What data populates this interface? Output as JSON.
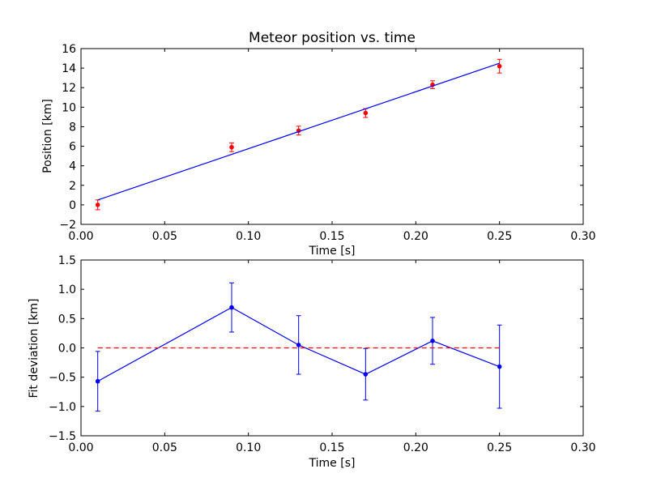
{
  "chart_data": [
    {
      "type": "scatter",
      "title": "Meteor position vs. time",
      "xlabel": "Time [s]",
      "ylabel": "Position [km]",
      "xlim": [
        0.0,
        0.3
      ],
      "ylim": [
        -2,
        16
      ],
      "x_ticks": [
        "0.00",
        "0.05",
        "0.10",
        "0.15",
        "0.20",
        "0.25",
        "0.30"
      ],
      "y_ticks": [
        "−2",
        "0",
        "2",
        "4",
        "6",
        "8",
        "10",
        "12",
        "14",
        "16"
      ],
      "grid": false,
      "series": [
        {
          "type": "errorbar",
          "color": "#ff0000",
          "x": [
            0.01,
            0.09,
            0.13,
            0.17,
            0.21,
            0.25
          ],
          "y": [
            0.0,
            5.9,
            7.6,
            9.4,
            12.3,
            14.2
          ],
          "yerr": [
            0.5,
            0.45,
            0.45,
            0.45,
            0.4,
            0.7
          ]
        },
        {
          "type": "line",
          "color": "#0000ff",
          "x": [
            0.01,
            0.25
          ],
          "y": [
            0.5,
            14.5
          ]
        }
      ]
    },
    {
      "type": "line",
      "title": "",
      "xlabel": "Time [s]",
      "ylabel": "Fit deviation [km]",
      "xlim": [
        0.0,
        0.3
      ],
      "ylim": [
        -1.5,
        1.5
      ],
      "x_ticks": [
        "0.00",
        "0.05",
        "0.10",
        "0.15",
        "0.20",
        "0.25",
        "0.30"
      ],
      "y_ticks": [
        "−1.5",
        "−1.0",
        "−0.5",
        "0.0",
        "0.5",
        "1.0",
        "1.5"
      ],
      "grid": false,
      "series": [
        {
          "type": "errorbar-line",
          "color": "#0000ff",
          "x": [
            0.01,
            0.09,
            0.13,
            0.17,
            0.21,
            0.25
          ],
          "y": [
            -0.57,
            0.69,
            0.05,
            -0.45,
            0.12,
            -0.32
          ],
          "yerr": [
            0.51,
            0.42,
            0.5,
            0.44,
            0.4,
            0.71
          ]
        },
        {
          "type": "reference-line",
          "color": "#ff0000",
          "style": "dashed",
          "x": [
            0.01,
            0.25
          ],
          "y": [
            0.0,
            0.0
          ]
        }
      ]
    }
  ]
}
